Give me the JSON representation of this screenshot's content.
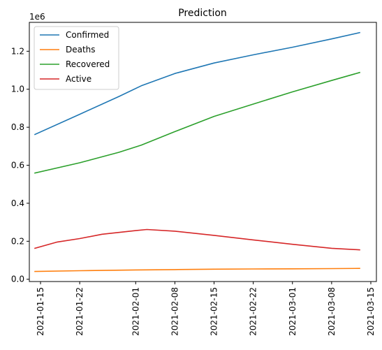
{
  "chart_data": {
    "type": "line",
    "title": "Prediction",
    "xlabel": "",
    "ylabel": "",
    "y_offset_label": "1e6",
    "x_axis": "date",
    "xlim": [
      "2021-01-13",
      "2021-03-16"
    ],
    "ylim": [
      -0.012,
      1.352
    ],
    "x_ticks": [
      "2021-01-15",
      "2021-01-22",
      "2021-02-01",
      "2021-02-08",
      "2021-02-15",
      "2021-02-22",
      "2021-03-01",
      "2021-03-08",
      "2021-03-15"
    ],
    "y_ticks": [
      0.0,
      0.2,
      0.4,
      0.6,
      0.8,
      1.0,
      1.2
    ],
    "y_tick_labels": [
      "0.0",
      "0.2",
      "0.4",
      "0.6",
      "0.8",
      "1.0",
      "1.2"
    ],
    "grid": false,
    "legend_position": "top-left",
    "series": [
      {
        "name": "Confirmed",
        "color": "#1f77b4",
        "x": [
          "2021-01-14",
          "2021-01-22",
          "2021-01-29",
          "2021-02-02",
          "2021-02-08",
          "2021-02-15",
          "2021-02-22",
          "2021-03-01",
          "2021-03-08",
          "2021-03-13"
        ],
        "values": [
          0.762,
          0.868,
          0.962,
          1.018,
          1.083,
          1.138,
          1.181,
          1.221,
          1.265,
          1.298
        ]
      },
      {
        "name": "Deaths",
        "color": "#ff7f0e",
        "x": [
          "2021-01-14",
          "2021-01-22",
          "2021-02-01",
          "2021-02-08",
          "2021-02-15",
          "2021-02-22",
          "2021-03-01",
          "2021-03-08",
          "2021-03-13"
        ],
        "values": [
          0.041,
          0.045,
          0.049,
          0.051,
          0.053,
          0.054,
          0.055,
          0.056,
          0.057
        ]
      },
      {
        "name": "Recovered",
        "color": "#2ca02c",
        "x": [
          "2021-01-14",
          "2021-01-22",
          "2021-01-29",
          "2021-02-02",
          "2021-02-08",
          "2021-02-15",
          "2021-02-22",
          "2021-03-01",
          "2021-03-08",
          "2021-03-13"
        ],
        "values": [
          0.559,
          0.613,
          0.668,
          0.706,
          0.777,
          0.857,
          0.922,
          0.986,
          1.046,
          1.088
        ]
      },
      {
        "name": "Active",
        "color": "#d62728",
        "x": [
          "2021-01-14",
          "2021-01-18",
          "2021-01-22",
          "2021-01-26",
          "2021-02-01",
          "2021-02-03",
          "2021-02-08",
          "2021-02-15",
          "2021-02-22",
          "2021-03-01",
          "2021-03-08",
          "2021-03-13"
        ],
        "values": [
          0.163,
          0.196,
          0.214,
          0.237,
          0.256,
          0.262,
          0.253,
          0.231,
          0.207,
          0.184,
          0.163,
          0.155
        ]
      }
    ]
  }
}
